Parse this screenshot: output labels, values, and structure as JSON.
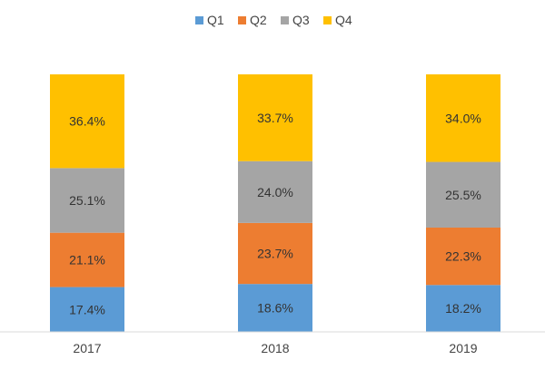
{
  "chart_data": {
    "type": "bar",
    "stacked": true,
    "categories": [
      "2017",
      "2018",
      "2019"
    ],
    "series": [
      {
        "name": "Q1",
        "color": "#5B9BD5",
        "values": [
          17.4,
          18.6,
          18.2
        ],
        "labels": [
          "17.4%",
          "18.6%",
          "18.2%"
        ]
      },
      {
        "name": "Q2",
        "color": "#ED7D31",
        "values": [
          21.1,
          23.7,
          22.3
        ],
        "labels": [
          "21.1%",
          "23.7%",
          "22.3%"
        ]
      },
      {
        "name": "Q3",
        "color": "#A5A5A5",
        "values": [
          25.1,
          24.0,
          25.5
        ],
        "labels": [
          "25.1%",
          "24.0%",
          "25.5%"
        ]
      },
      {
        "name": "Q4",
        "color": "#FFC000",
        "values": [
          36.4,
          33.7,
          34.0
        ],
        "labels": [
          "36.4%",
          "33.7%",
          "34.0%"
        ]
      }
    ],
    "ylim": [
      0,
      100
    ],
    "legend_position": "top",
    "grid": false,
    "title": "",
    "xlabel": "",
    "ylabel": ""
  }
}
